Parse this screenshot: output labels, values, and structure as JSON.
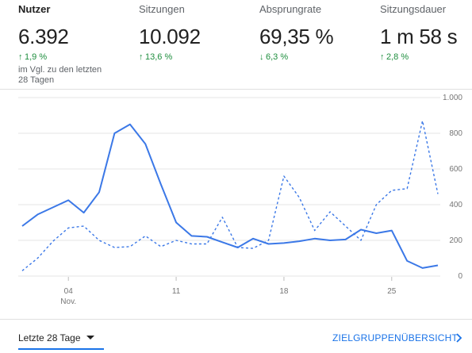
{
  "metrics": [
    {
      "label": "Nutzer",
      "value": "6.392",
      "change": "1,9 %",
      "direction": "up",
      "note": "im Vgl. zu den letzten 28 Tagen"
    },
    {
      "label": "Sitzungen",
      "value": "10.092",
      "change": "13,6 %",
      "direction": "up"
    },
    {
      "label": "Absprungrate",
      "value": "69,35 %",
      "change": "6,3 %",
      "direction": "down"
    },
    {
      "label": "Sitzungsdauer",
      "value": "1 m 58 s",
      "change": "2,8 %",
      "direction": "up"
    }
  ],
  "colors": {
    "primary_line": "#3b78e7",
    "positive": "#1e8e3e"
  },
  "chart_data": {
    "type": "line",
    "x": [
      1,
      2,
      3,
      4,
      5,
      6,
      7,
      8,
      9,
      10,
      11,
      12,
      13,
      14,
      15,
      16,
      17,
      18,
      19,
      20,
      21,
      22,
      23,
      24,
      25,
      26,
      27,
      28
    ],
    "x_tick_labels": [
      "04",
      "11",
      "18",
      "25"
    ],
    "x_tick_positions": [
      4,
      11,
      18,
      25
    ],
    "x_sub_label": "Nov.",
    "ylim": [
      0,
      1000
    ],
    "y_tick_labels": [
      "0",
      "200",
      "400",
      "600",
      "800",
      "1.000"
    ],
    "y_ticks": [
      0,
      200,
      400,
      600,
      800,
      1000
    ],
    "grid": true,
    "series": [
      {
        "style": "solid",
        "values": [
          280,
          345,
          385,
          425,
          355,
          470,
          800,
          850,
          740,
          515,
          300,
          225,
          220,
          190,
          160,
          210,
          180,
          185,
          195,
          210,
          200,
          205,
          260,
          240,
          255,
          85,
          45,
          60
        ]
      },
      {
        "style": "dashed",
        "values": [
          30,
          100,
          195,
          270,
          280,
          200,
          160,
          165,
          225,
          165,
          200,
          180,
          180,
          330,
          160,
          155,
          200,
          560,
          440,
          255,
          360,
          280,
          200,
          400,
          480,
          490,
          870,
          460
        ]
      }
    ]
  },
  "footer": {
    "range_label": "Letzte 28 Tage",
    "link_label": "ZIELGRUPPENÜBERSICHT"
  }
}
